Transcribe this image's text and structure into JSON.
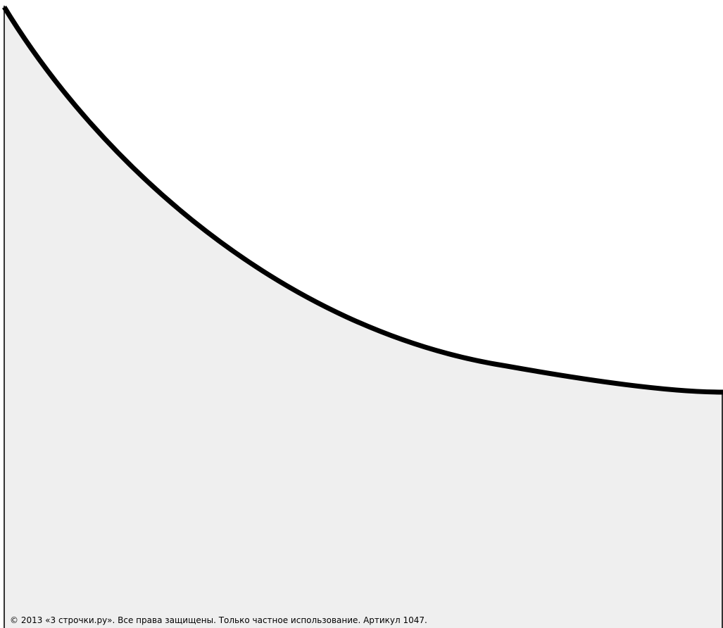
{
  "footer": {
    "copyright": "© 2013 «3 строчки.ру». Все права защищены. Только частное использование. Артикул 1047."
  },
  "colors": {
    "background": "#ffffff",
    "fill_region": "#efefef",
    "curve": "#000000",
    "frame_line": "#333333",
    "text": "#000000"
  }
}
